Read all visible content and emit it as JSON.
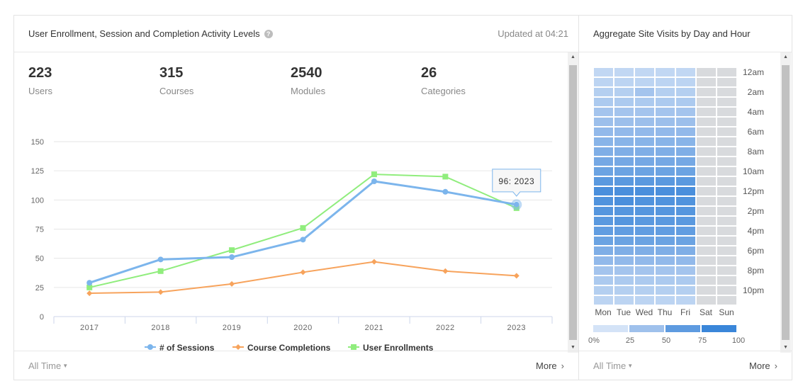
{
  "left_panel": {
    "title": "User Enrollment, Session and Completion Activity Levels",
    "help_icon_glyph": "?",
    "updated": "Updated at 04:21",
    "stats": [
      {
        "value": "223",
        "label": "Users"
      },
      {
        "value": "315",
        "label": "Courses"
      },
      {
        "value": "2540",
        "label": "Modules"
      },
      {
        "value": "26",
        "label": "Categories"
      }
    ],
    "footer": {
      "filter_label": "All Time",
      "more_label": "More"
    }
  },
  "right_panel": {
    "title": "Aggregate Site Visits by Day and Hour",
    "footer": {
      "filter_label": "All Time",
      "more_label": "More"
    }
  },
  "chart_data": [
    {
      "type": "line",
      "title": "User Enrollment, Session and Completion Activity Levels",
      "categories": [
        "2017",
        "2018",
        "2019",
        "2020",
        "2021",
        "2022",
        "2023"
      ],
      "ylim": [
        0,
        150
      ],
      "yticks": [
        0,
        25,
        50,
        75,
        100,
        125,
        150
      ],
      "series": [
        {
          "name": "# of Sessions",
          "color": "#7cb5ec",
          "marker": "circle",
          "values": [
            29,
            49,
            51,
            66,
            116,
            107,
            96
          ]
        },
        {
          "name": "Course Completions",
          "color": "#f7a35c",
          "marker": "diamond",
          "values": [
            20,
            21,
            28,
            38,
            47,
            39,
            35
          ]
        },
        {
          "name": "User Enrollments",
          "color": "#90ed7d",
          "marker": "square",
          "values": [
            25,
            39,
            57,
            76,
            122,
            120,
            93
          ]
        }
      ],
      "tooltip": {
        "text": "96: 2023",
        "series_index": 0,
        "category_index": 6
      },
      "grid": true,
      "legend": "bottom-center"
    },
    {
      "type": "heatmap",
      "title": "Aggregate Site Visits by Day and Hour",
      "days": [
        "Mon",
        "Tue",
        "Wed",
        "Thu",
        "Fri",
        "Sat",
        "Sun"
      ],
      "hour_labels": [
        "12am",
        "2am",
        "4am",
        "6am",
        "8am",
        "10am",
        "12pm",
        "2pm",
        "4pm",
        "6pm",
        "8pm",
        "10pm"
      ],
      "values": [
        [
          12,
          12,
          12,
          12,
          12,
          5,
          5
        ],
        [
          15,
          15,
          15,
          15,
          15,
          5,
          5
        ],
        [
          20,
          20,
          30,
          20,
          20,
          5,
          5
        ],
        [
          25,
          25,
          25,
          25,
          25,
          5,
          5
        ],
        [
          30,
          30,
          30,
          30,
          30,
          5,
          5
        ],
        [
          35,
          35,
          35,
          35,
          35,
          5,
          5
        ],
        [
          40,
          40,
          40,
          40,
          40,
          5,
          5
        ],
        [
          45,
          45,
          45,
          45,
          45,
          5,
          5
        ],
        [
          50,
          50,
          50,
          50,
          50,
          5,
          5
        ],
        [
          55,
          55,
          55,
          55,
          55,
          5,
          5
        ],
        [
          60,
          60,
          60,
          60,
          60,
          5,
          5
        ],
        [
          70,
          70,
          70,
          70,
          70,
          5,
          5
        ],
        [
          85,
          85,
          85,
          85,
          85,
          5,
          5
        ],
        [
          80,
          85,
          80,
          80,
          80,
          5,
          5
        ],
        [
          75,
          75,
          75,
          75,
          75,
          5,
          5
        ],
        [
          70,
          75,
          70,
          70,
          70,
          5,
          5
        ],
        [
          65,
          65,
          65,
          65,
          65,
          5,
          5
        ],
        [
          60,
          60,
          60,
          60,
          60,
          5,
          5
        ],
        [
          50,
          50,
          50,
          50,
          50,
          5,
          5
        ],
        [
          40,
          40,
          40,
          40,
          40,
          5,
          5
        ],
        [
          30,
          30,
          30,
          30,
          30,
          5,
          5
        ],
        [
          25,
          25,
          25,
          25,
          25,
          5,
          5
        ],
        [
          20,
          20,
          20,
          20,
          20,
          5,
          5
        ],
        [
          15,
          15,
          15,
          15,
          15,
          5,
          5
        ]
      ],
      "color_scale": {
        "ticks": [
          0,
          25,
          50,
          75,
          100
        ],
        "colors": [
          "#d4e3f7",
          "#9fc1ec",
          "#5e9be0",
          "#3a86d9"
        ],
        "empty_color": "#d8dadd"
      }
    }
  ]
}
